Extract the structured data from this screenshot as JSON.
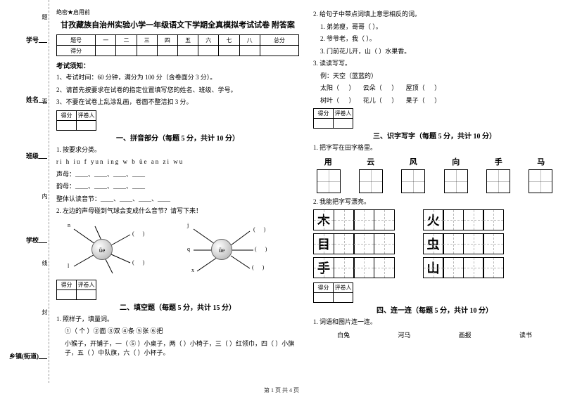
{
  "binding": {
    "labels": [
      "学号",
      "姓名",
      "班级",
      "学校",
      "乡镇(街道)"
    ],
    "vertical_marks": [
      "题",
      "否",
      "内",
      "线",
      "封"
    ]
  },
  "secret": "绝密★启用前",
  "title": "甘孜藏族自治州实验小学一年级语文下学期全真模拟考试试卷 附答案",
  "score_table": {
    "headers": [
      "题号",
      "一",
      "二",
      "三",
      "四",
      "五",
      "六",
      "七",
      "八",
      "总分"
    ],
    "row_label": "得分"
  },
  "notice_title": "考试须知：",
  "notices": [
    "1、考试时间：60 分钟，满分为 100 分（含卷面分 3 分）。",
    "2、请首先按要求在试卷的指定位置填写您的姓名、班级、学号。",
    "3、不要在试卷上乱涂乱画，卷面不整洁扣 3 分。"
  ],
  "mark_box": {
    "c1": "得分",
    "c2": "评卷人"
  },
  "s1": {
    "title": "一、拼音部分（每题 5 分，共计 10 分）",
    "q1": "1. 按要求分类。",
    "letters": "ri   h   iu   f   yun   ing   w   b   üe   an   zi   wu",
    "l1": "声母：____、____、____、____",
    "l2": "韵母：____、____、____、____",
    "l3": "整体认读音节：____、____、____、____",
    "q2": "2. 左边的声母碰到气球会变成什么音节？请写下来！",
    "ball": "üe",
    "rays_left": [
      "n",
      "l"
    ],
    "rays_right": [
      "j",
      "q",
      "x"
    ]
  },
  "s2": {
    "title": "二、填空题（每题 5 分，共计 15 分）",
    "q1": "1. 照样子，填量词。",
    "line1": "①（ 个 ）②面    ③双    ④条    ⑤张    ⑥把",
    "line2": "小猴子，开铺子，一（ ⑤ ）小桌子，两（    ）小椅子，三（    ）红领巾，四（    ）小旗子，五（    ）中队旗，六（    ）小杯子。"
  },
  "right": {
    "q2": "2. 给句子中带点词填上意思相反的词。",
    "r1": "1. 弟弟瘦，哥哥（       ）。",
    "r2": "2. 爷爷老，我（       ）。",
    "r3": "3. 门前花儿开，山（       ）水果香。",
    "q3": "3. 读读写写。",
    "ex": "例：天空（蓝蓝的）",
    "w1a": "太阳（",
    "w1b": "）",
    "w2a": "云朵（",
    "w2b": "）",
    "w3a": "屋顶（",
    "w3b": "）",
    "w4a": "树叶（",
    "w4b": "）",
    "w5a": "花儿（",
    "w5b": "）",
    "w6a": "果子（",
    "w6b": "）"
  },
  "s3": {
    "title": "三、识字写字（每题 5 分，共计 10 分）",
    "q1": "1. 把字写在田字格里。",
    "chars": [
      "用",
      "云",
      "风",
      "向",
      "手",
      "马"
    ],
    "q2": "2. 我能把字写漂亮。",
    "prac": [
      [
        "木",
        "火"
      ],
      [
        "目",
        "虫"
      ],
      [
        "手",
        "山"
      ]
    ]
  },
  "s4": {
    "title": "四、连一连（每题 5 分，共计 10 分）",
    "q1": "1. 词语和图片连一连。",
    "words": [
      "白兔",
      "河马",
      "画报",
      "读书"
    ]
  },
  "footer": "第 1 页 共 4 页"
}
